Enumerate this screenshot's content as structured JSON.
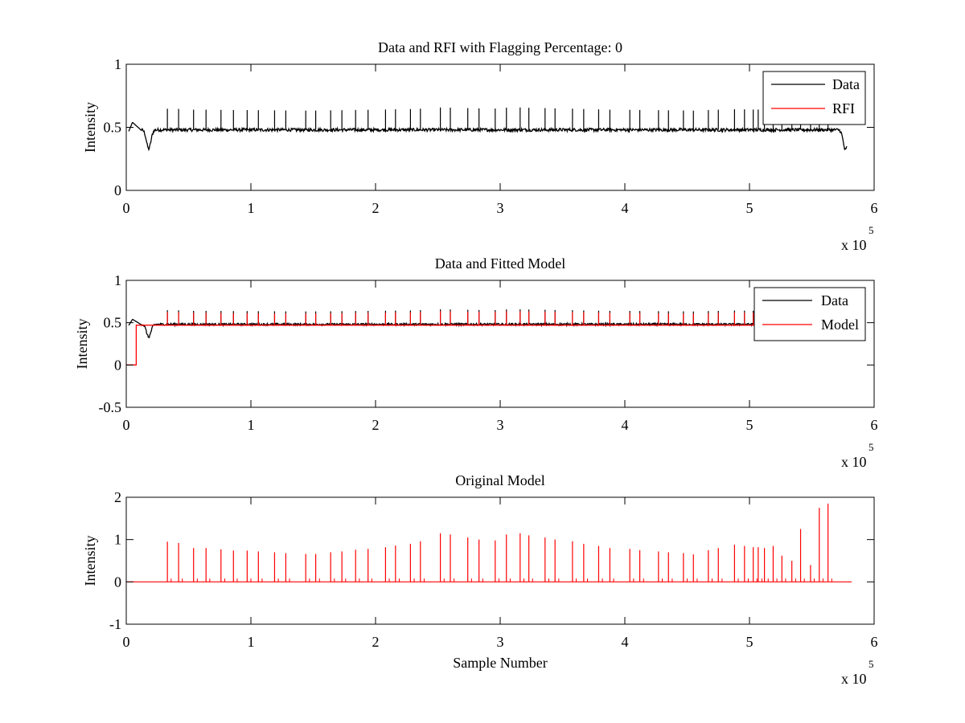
{
  "figure": {
    "background": "#ffffff"
  },
  "chart_data": [
    {
      "type": "line",
      "title": "Data and RFI with Flagging Percentage: 0",
      "xlabel": "",
      "ylabel": "Intensity",
      "xlim": [
        0,
        6
      ],
      "ylim": [
        0,
        1
      ],
      "xticks": [
        0,
        1,
        2,
        3,
        4,
        5,
        6
      ],
      "yticks": [
        0,
        0.5,
        1
      ],
      "x_tick_labels": [
        "0",
        "1",
        "2",
        "3",
        "4",
        "5",
        "6"
      ],
      "y_tick_labels": [
        "0",
        "0.5",
        "1"
      ],
      "x_exponent_base": "x 10",
      "x_exponent_power": "5",
      "grid": false,
      "legend_position": "top-right",
      "series": [
        {
          "name": "Data",
          "color": "#000000",
          "kind": "data",
          "baseline": 0.48
        },
        {
          "name": "RFI",
          "color": "#ff0000",
          "kind": "none"
        }
      ]
    },
    {
      "type": "line",
      "title": "Data and Fitted Model",
      "xlabel": "",
      "ylabel": "Intensity",
      "xlim": [
        0,
        6
      ],
      "ylim": [
        -0.5,
        1
      ],
      "xticks": [
        0,
        1,
        2,
        3,
        4,
        5,
        6
      ],
      "yticks": [
        -0.5,
        0,
        0.5,
        1
      ],
      "x_tick_labels": [
        "0",
        "1",
        "2",
        "3",
        "4",
        "5",
        "6"
      ],
      "y_tick_labels": [
        "-0.5",
        "0",
        "0.5",
        "1"
      ],
      "x_exponent_base": "x 10",
      "x_exponent_power": "5",
      "grid": false,
      "legend_position": "top-right",
      "series": [
        {
          "name": "Data",
          "color": "#000000",
          "kind": "data",
          "baseline": 0.48
        },
        {
          "name": "Model",
          "color": "#ff0000",
          "kind": "model",
          "baseline": 0.47
        }
      ]
    },
    {
      "type": "line",
      "title": "Original Model",
      "xlabel": "Sample Number",
      "ylabel": "Intensity",
      "xlim": [
        0,
        6
      ],
      "ylim": [
        -1,
        2
      ],
      "xticks": [
        0,
        1,
        2,
        3,
        4,
        5,
        6
      ],
      "yticks": [
        -1,
        0,
        1,
        2
      ],
      "x_tick_labels": [
        "0",
        "1",
        "2",
        "3",
        "4",
        "5",
        "6"
      ],
      "y_tick_labels": [
        "-1",
        "0",
        "1",
        "2"
      ],
      "x_exponent_base": "x 10",
      "x_exponent_power": "5",
      "grid": false,
      "legend_position": "none",
      "series": [
        {
          "name": "Original Model",
          "color": "#ff0000",
          "kind": "spikes",
          "baseline": 0
        }
      ]
    }
  ],
  "rfi_pulses": {
    "description_units": "x in units of 10^5 samples",
    "positions": [
      0.33,
      0.42,
      0.54,
      0.64,
      0.76,
      0.86,
      0.97,
      1.06,
      1.19,
      1.28,
      1.44,
      1.52,
      1.64,
      1.73,
      1.84,
      1.94,
      2.08,
      2.16,
      2.28,
      2.36,
      2.52,
      2.6,
      2.74,
      2.83,
      2.96,
      3.05,
      3.16,
      3.23,
      3.36,
      3.44,
      3.58,
      3.67,
      3.79,
      3.88,
      4.04,
      4.12,
      4.27,
      4.35,
      4.47,
      4.55,
      4.67,
      4.75,
      4.88,
      4.96,
      5.03,
      5.07,
      5.12,
      5.19,
      5.26,
      5.34,
      5.41,
      5.49,
      5.56,
      5.63
    ],
    "heights": [
      0.95,
      0.92,
      0.8,
      0.8,
      0.77,
      0.74,
      0.74,
      0.72,
      0.7,
      0.68,
      0.66,
      0.66,
      0.7,
      0.72,
      0.76,
      0.78,
      0.82,
      0.86,
      0.9,
      0.96,
      1.15,
      1.12,
      1.05,
      1.0,
      0.98,
      1.12,
      1.15,
      1.1,
      1.05,
      1.0,
      0.96,
      0.9,
      0.85,
      0.8,
      0.78,
      0.75,
      0.72,
      0.7,
      0.68,
      0.65,
      0.75,
      0.8,
      0.88,
      0.85,
      0.82,
      0.82,
      0.8,
      0.85,
      0.62,
      0.5,
      1.25,
      0.4,
      1.75,
      1.85
    ]
  }
}
